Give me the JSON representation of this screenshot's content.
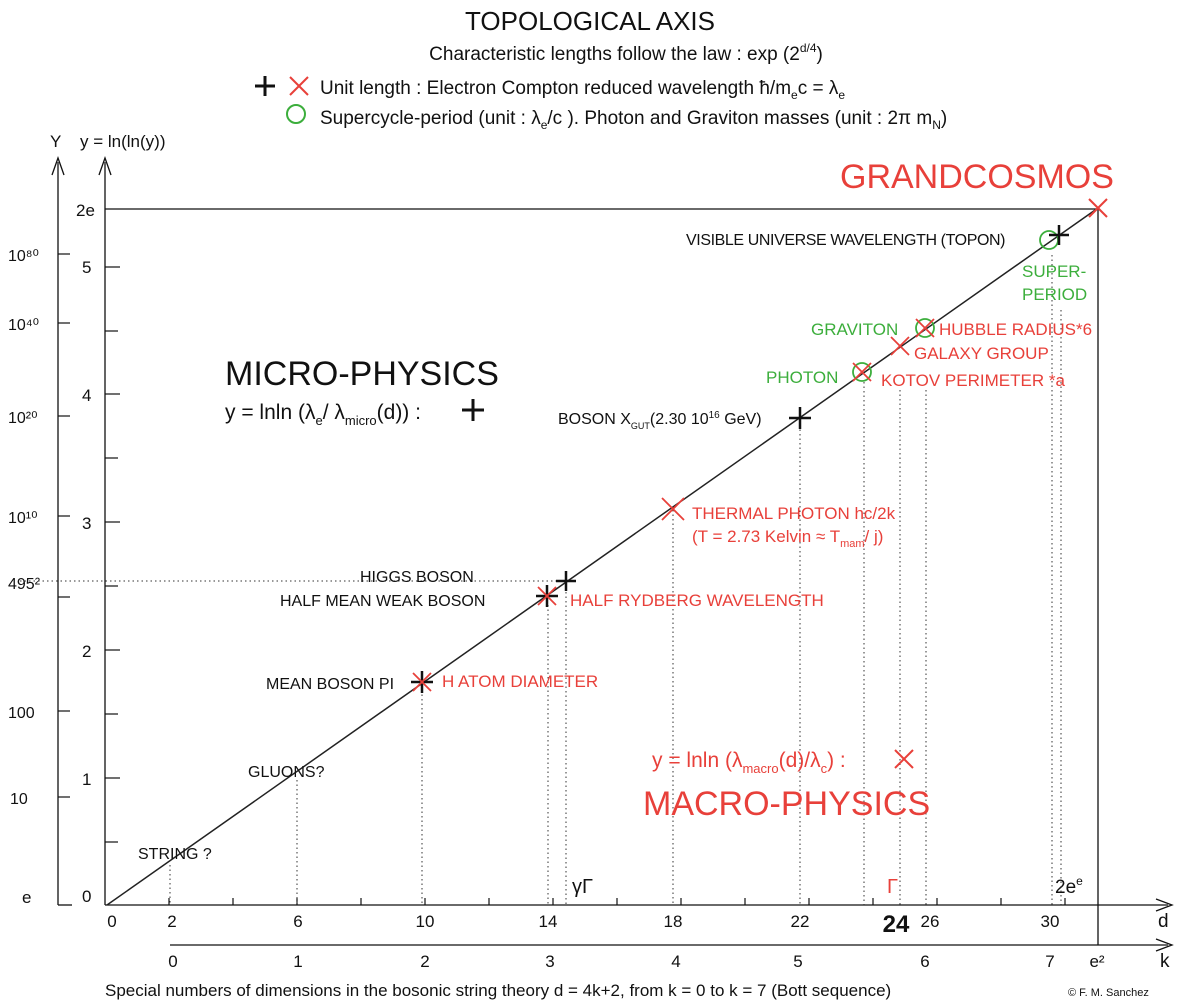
{
  "header": {
    "title": "TOPOLOGICAL AXIS",
    "law_prefix": "Characteristic lengths follow the law : exp (2",
    "law_exp": "d/4",
    "law_suffix": ")",
    "legend_unit_text": "Unit length : Electron Compton reduced wavelength ħ/m",
    "legend_unit_sub_e": "e",
    "legend_unit_mid": "c = λ",
    "legend_unit_sub_e2": "e",
    "legend_super_text": "Supercycle-period (unit : λ",
    "legend_super_sub": "e",
    "legend_super_rest": "/c ). Photon and Graviton masses (unit : 2π m",
    "legend_super_sub_n": "N",
    "legend_super_end": ")"
  },
  "axes": {
    "Y_label": "Y",
    "y_label": "y  =  ln(ln(y))",
    "Y_ticks": [
      {
        "label": "10⁸⁰"
      },
      {
        "label": "10⁴⁰"
      },
      {
        "label": "10²⁰"
      },
      {
        "label": "10¹⁰"
      },
      {
        "label": "495²"
      },
      {
        "label": "100"
      },
      {
        "label": "10"
      },
      {
        "label": "e"
      }
    ],
    "y_ticks": [
      {
        "label": "2e",
        "y": 5.4366
      },
      {
        "label": "5",
        "y": 5
      },
      {
        "label": "4",
        "y": 4
      },
      {
        "label": "3",
        "y": 3
      },
      {
        "label": "2",
        "y": 2
      },
      {
        "label": "1",
        "y": 1
      },
      {
        "label": "0",
        "y": 0
      }
    ],
    "d_label": "d",
    "d_ticks": [
      "0",
      "2",
      "6",
      "10",
      "14",
      "18",
      "22",
      "24",
      "26",
      "30"
    ],
    "k_label": "k",
    "k_ticks": [
      "0",
      "1",
      "2",
      "3",
      "4",
      "5",
      "6",
      "7",
      "e²"
    ],
    "special_gamma": "γΓ",
    "special_Gamma": "Γ",
    "special_2ee": "2e",
    "special_2ee_sup": "e"
  },
  "regions": {
    "grandcosmos": "GRANDCOSMOS",
    "micro_title": "MICRO-PHYSICS",
    "micro_formula_a": "y = lnln (λ",
    "micro_formula_sub_e": "e",
    "micro_formula_b": "/ λ",
    "micro_formula_sub_micro": "micro",
    "micro_formula_c": "(d)) :",
    "macro_formula_a": "y = lnln (λ",
    "macro_formula_sub": "macro",
    "macro_formula_b": "(d)/λ",
    "macro_formula_sub_c": "c",
    "macro_formula_c": ") :",
    "macro_title": "MACRO-PHYSICS"
  },
  "labels": {
    "visible_universe": "VISIBLE UNIVERSE WAVELENGTH (TOPON)",
    "super_1": "SUPER-",
    "super_2": "PERIOD",
    "graviton": "GRAVITON",
    "hubble": "HUBBLE RADIUS*6",
    "galaxy": "GALAXY GROUP",
    "photon": "PHOTON",
    "kotov": "KOTOV PERIMETER *a",
    "boson_x_a": "BOSON X",
    "boson_x_sub": "GUT",
    "boson_x_b": "(2.30 10",
    "boson_x_sup": "16",
    "boson_x_c": " GeV)",
    "thermal_1": "THERMAL PHOTON hc/2k",
    "thermal_2a": "(T = 2.73  Kelvin ≈ T",
    "thermal_2_sub": "mam",
    "thermal_2b": "/ j)",
    "higgs": "HIGGS BOSON",
    "half_weak": "HALF MEAN WEAK BOSON",
    "half_rydberg": "HALF RYDBERG WAVELENGTH",
    "mean_pi": "MEAN BOSON PI",
    "h_atom": "H ATOM DIAMETER",
    "gluons": "GLUONS?",
    "string": "STRING ?"
  },
  "footer": {
    "caption": "Special numbers of dimensions in the bosonic string theory d = 4k+2, from k = 0 to k = 7 (Bott sequence)",
    "credit": "© F. M. Sanchez"
  },
  "colors": {
    "ink": "#111111",
    "red": "#e8403a",
    "green": "#3cae3c"
  }
}
